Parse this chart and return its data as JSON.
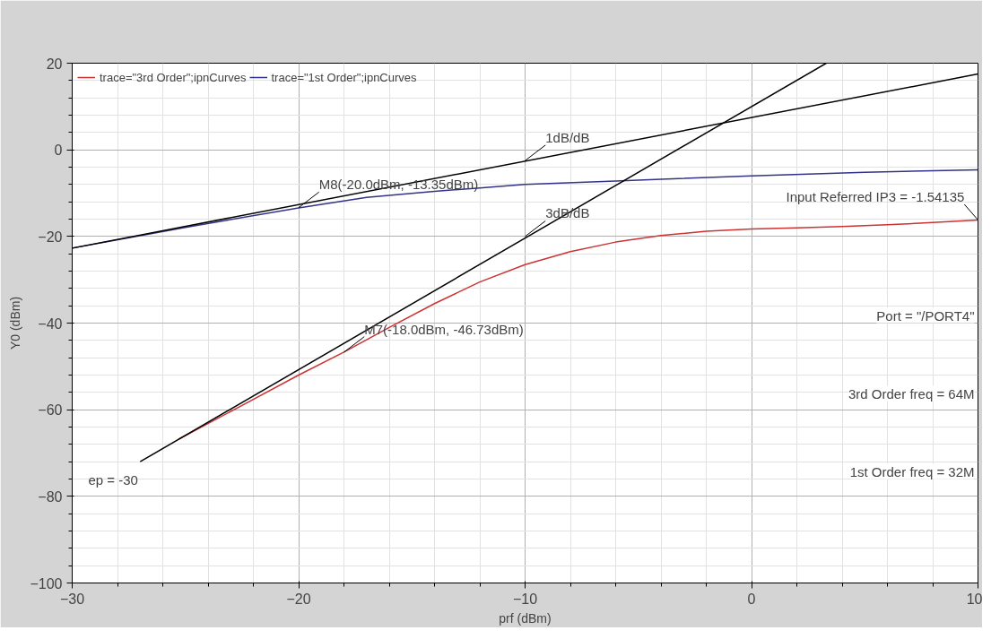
{
  "chart_data": {
    "type": "line",
    "xlabel": "prf (dBm)",
    "ylabel": "Y0 (dBm)",
    "xlim": [
      -30,
      10
    ],
    "xticks": [
      -30,
      -20,
      -10,
      0,
      10
    ],
    "ylim": [
      -100,
      20
    ],
    "yticks": [
      -100,
      -80,
      -60,
      -40,
      -20,
      0,
      20
    ],
    "grid": true,
    "legend": "top left",
    "series": [
      {
        "name": "trace=\"3rd Order\";ipnCurves",
        "color": "#cc3333",
        "x": [
          -25.3,
          -22.5,
          -20,
          -18,
          -16,
          -14,
          -12,
          -10,
          -8,
          -6,
          -4,
          -2,
          0,
          2,
          4,
          6,
          8,
          10
        ],
        "values": [
          -66.8,
          -59,
          -52,
          -46.7,
          -41,
          -35.5,
          -30.5,
          -26.5,
          -23.5,
          -21.3,
          -19.8,
          -18.8,
          -18.3,
          -18,
          -17.7,
          -17.3,
          -16.8,
          -16.2
        ]
      },
      {
        "name": "trace=\"1st Order\";ipnCurves",
        "color": "#333388",
        "x": [
          -30,
          -25,
          -20,
          -17,
          -14,
          -12,
          -10,
          -6,
          -4,
          0,
          5,
          10
        ],
        "values": [
          -22.7,
          -17.9,
          -13.4,
          -11,
          -9.6,
          -8.8,
          -8,
          -7.2,
          -6.8,
          -6,
          -5.2,
          -4.6
        ]
      },
      {
        "color": "#000000",
        "x": [
          -30,
          10
        ],
        "values": [
          -22.7,
          17.5
        ]
      },
      {
        "color": "#000000",
        "x": [
          -27,
          3.3
        ],
        "values": [
          -72,
          20
        ]
      }
    ],
    "annotations": [
      {
        "text": "M8(-20.0dBm, -13.35dBm)",
        "x": -20,
        "y": -13.35
      },
      {
        "text": "M7(-18.0dBm, -46.73dBm)",
        "x": -18,
        "y": -46.73
      },
      {
        "text": "1dB/dB",
        "x": -10,
        "y": -2.5
      },
      {
        "text": "3dB/dB",
        "x": -10,
        "y": -20
      },
      {
        "text": "Input Referred IP3 = -1.54135",
        "x": 10,
        "y": -16.2
      },
      "ep = -30",
      "Port = \"/PORT4\"",
      "3rd Order freq = 64M",
      "1st Order freq = 32M"
    ]
  }
}
